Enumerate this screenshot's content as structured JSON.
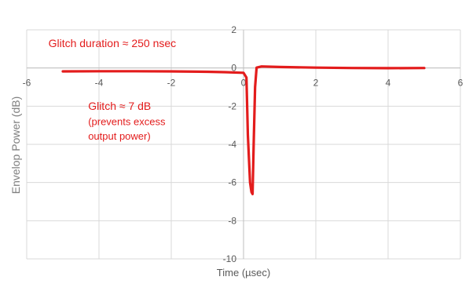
{
  "chart_data": {
    "type": "line",
    "xlabel": "Time (µsec)",
    "ylabel": "Envelop Power (dB)",
    "xlim": [
      -6,
      6
    ],
    "ylim": [
      -10,
      2
    ],
    "x_ticks": [
      "-6",
      "-4",
      "-2",
      "0",
      "2",
      "4",
      "6"
    ],
    "y_ticks": [
      "2",
      "0",
      "-2",
      "-4",
      "-6",
      "-8",
      "-10"
    ],
    "grid": true,
    "series": [
      {
        "color": "#e31c1c",
        "points": [
          [
            -5.0,
            -0.18
          ],
          [
            -4.0,
            -0.17
          ],
          [
            -3.0,
            -0.17
          ],
          [
            -2.0,
            -0.18
          ],
          [
            -1.0,
            -0.2
          ],
          [
            -0.5,
            -0.22
          ],
          [
            0.0,
            -0.25
          ],
          [
            0.08,
            -0.5
          ],
          [
            0.12,
            -3.5
          ],
          [
            0.18,
            -6.0
          ],
          [
            0.22,
            -6.5
          ],
          [
            0.25,
            -6.6
          ],
          [
            0.28,
            -4.0
          ],
          [
            0.32,
            -1.0
          ],
          [
            0.36,
            0.02
          ],
          [
            0.5,
            0.08
          ],
          [
            1.0,
            0.05
          ],
          [
            2.0,
            0.02
          ],
          [
            3.0,
            0.0
          ],
          [
            4.0,
            -0.01
          ],
          [
            5.0,
            0.0
          ]
        ]
      }
    ],
    "annotations": [
      {
        "text": "Glitch  duration ≈ 250 nsec",
        "x": -5.4,
        "y": 1.1
      },
      {
        "text": "Glitch ≈ 7 dB",
        "x": -4.3,
        "y": -2.2
      },
      {
        "text": "(prevents excess",
        "x": -4.3,
        "y": -3.0
      },
      {
        "text": "output power)",
        "x": -4.3,
        "y": -3.75
      }
    ]
  }
}
